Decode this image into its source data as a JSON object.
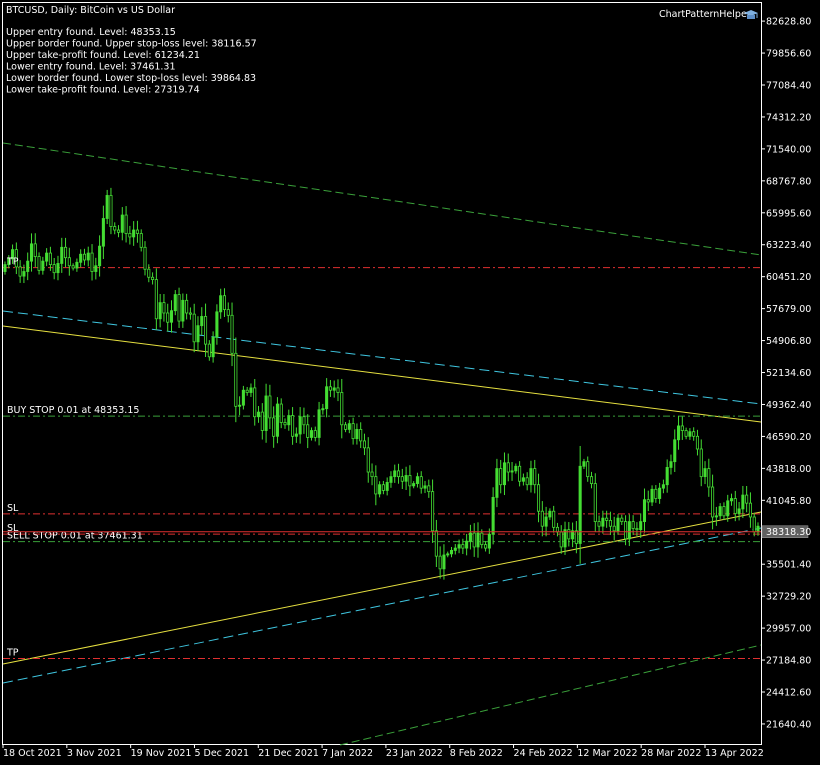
{
  "header": {
    "title": "BTCUSD, Daily:  BitCoin vs US Dollar",
    "indicator": "ChartPatternHelper",
    "indicator_icon": "graduation-cap-icon"
  },
  "info_lines": [
    "Upper entry found. Level: 48353.15",
    "Upper border found. Upper stop-loss level: 38116.57",
    "Upper take-profit found. Level: 61234.21",
    "Lower entry found. Level: 37461.31",
    "Lower border found. Lower stop-loss level: 39864.83",
    "Lower take-profit found. Level: 27319.74"
  ],
  "chart_data": {
    "type": "candlestick",
    "symbol": "BTCUSD",
    "timeframe": "Daily",
    "ylim": [
      19900,
      84200
    ],
    "y_ticks": [
      "82628.80",
      "79856.60",
      "77084.40",
      "74312.20",
      "71540.00",
      "68767.80",
      "65995.60",
      "63223.40",
      "60451.20",
      "57679.00",
      "54906.80",
      "52134.60",
      "49362.40",
      "46590.20",
      "43818.00",
      "41045.80",
      "38318.30",
      "35501.40",
      "32729.20",
      "29957.00",
      "27184.80",
      "24412.60",
      "21640.40"
    ],
    "x_labels": [
      "18 Oct 2021",
      "3 Nov 2021",
      "19 Nov 2021",
      "5 Dec 2021",
      "21 Dec 2021",
      "7 Jan 2022",
      "23 Jan 2022",
      "8 Feb 2022",
      "24 Feb 2022",
      "12 Mar 2022",
      "28 Mar 2022",
      "13 Apr 2022"
    ],
    "current_price": "38318.30",
    "close_series": [
      61500,
      62000,
      62800,
      61300,
      60500,
      60900,
      61800,
      63300,
      62200,
      61000,
      61800,
      62500,
      61500,
      60800,
      61600,
      63000,
      62100,
      61400,
      61200,
      61700,
      62400,
      61900,
      62500,
      60900,
      61400,
      63100,
      65500,
      67500,
      64800,
      64500,
      64300,
      65800,
      64200,
      63900,
      64500,
      64200,
      63000,
      61100,
      60400,
      60200,
      56800,
      58200,
      57300,
      56500,
      57500,
      58900,
      56600,
      58400,
      57300,
      57200,
      54800,
      56200,
      57000,
      54600,
      53500,
      55200,
      57400,
      58800,
      57600,
      57100,
      53800,
      49200,
      49300,
      50600,
      50400,
      50800,
      48300,
      48700,
      47100,
      50100,
      48200,
      46600,
      49400,
      47800,
      47600,
      48400,
      46600,
      46800,
      48300,
      47600,
      46500,
      47100,
      46500,
      48900,
      49000,
      50900,
      50600,
      50800,
      50400,
      47600,
      47200,
      47700,
      46400,
      47200,
      46200,
      45600,
      43500,
      43100,
      41600,
      42400,
      41900,
      42600,
      43100,
      43600,
      43100,
      42700,
      43200,
      42300,
      42500,
      43100,
      42100,
      42300,
      41800,
      38400,
      36200,
      35100,
      36300,
      36400,
      36700,
      36900,
      37200,
      36900,
      37500,
      38200,
      37000,
      38200,
      37200,
      36900,
      38100,
      41300,
      43800,
      42400,
      44300,
      43500,
      43600,
      44000,
      42700,
      43000,
      42400,
      43800,
      42400,
      40100,
      38800,
      39600,
      40100,
      38700,
      38300,
      37000,
      38500,
      37700,
      38400,
      37300,
      44000,
      44400,
      43100,
      42500,
      39200,
      38800,
      39500,
      39300,
      38800,
      38400,
      39500,
      39200,
      37700,
      39200,
      38600,
      38500,
      39200,
      41100,
      40900,
      42000,
      41200,
      42100,
      42400,
      43900,
      44400,
      46300,
      47500,
      47100,
      46600,
      47000,
      46600,
      45500,
      43100,
      43800,
      42200,
      39600,
      39700,
      40500,
      39700,
      41000,
      41200,
      39900,
      40300,
      41500,
      40800,
      39600,
      38300,
      38800
    ]
  },
  "levels": {
    "tp_upper": {
      "label": "TP",
      "value": 61234.21
    },
    "buy_stop": {
      "label": "BUY STOP 0.01 at 48353.15",
      "value": 48353.15
    },
    "sl_upper": {
      "label": "SL",
      "value": 39864.83
    },
    "sl_lower": {
      "label": "SL",
      "value": 38116.57
    },
    "sell_stop": {
      "label": "SELL STOP 0.01 at 37461.31",
      "value": 37461.31
    },
    "tp_lower": {
      "label": "TP",
      "value": 27319.74
    }
  },
  "colors": {
    "background": "#000000",
    "text": "#ffffff",
    "candle": "#44dd33",
    "yellow_line": "#e6e040",
    "cyan_line": "#3fc6e0",
    "green_line": "#3aa03a",
    "red_level": "#e03030",
    "green_level": "#3aa03a",
    "current_price_line": "#e03030",
    "price_box": "#606060"
  }
}
